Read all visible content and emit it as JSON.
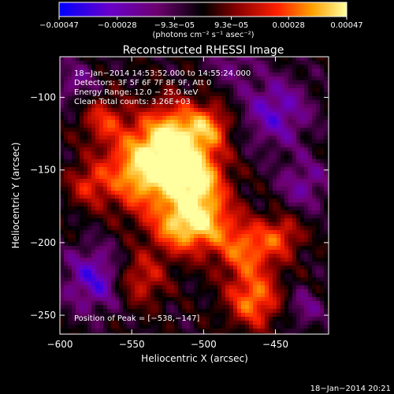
{
  "chart_data": {
    "type": "heatmap",
    "title": "Reconstructed RHESSI Image",
    "xlabel": "Heliocentric X (arcsec)",
    "ylabel": "Heliocentric Y (arcsec)",
    "xlim": [
      -600,
      -413
    ],
    "ylim": [
      -263,
      -72
    ],
    "x_ticks": [
      -600,
      -550,
      -500,
      -450
    ],
    "x_tick_labels": [
      "−600",
      "−550",
      "−500",
      "−450"
    ],
    "y_ticks": [
      -100,
      -150,
      -200,
      -250
    ],
    "y_tick_labels": [
      "−100",
      "−150",
      "−200",
      "−250"
    ],
    "colorbar": {
      "min": -0.00047,
      "max": 0.00047,
      "ticks": [
        -0.00047,
        -0.00028,
        -9.3e-05,
        9.3e-05,
        0.00028,
        0.00047
      ],
      "tick_labels": [
        "−0.00047",
        "−0.00028",
        "−9.3e−05",
        "9.3e−05",
        "0.00028",
        "0.00047"
      ],
      "unit_label": "(photons cm⁻² s⁻¹ asec⁻²)",
      "colors": [
        "#0000ff",
        "#6a00c8",
        "#6d0070",
        "#000000",
        "#8a0000",
        "#ff2000",
        "#ffa000",
        "#ffffa0"
      ]
    },
    "peak": [
      -538,
      -147
    ],
    "grid_on": false,
    "annotations": [
      "18−Jan−2014 14:53:52.000 to 14:55:24.000",
      "Detectors: 3F 5F 6F 7F 8F 9F, Att 0",
      "Energy Range: 12.0 − 25.0 keV",
      "Clean     Total counts: 3.26E+03",
      "Position of Peak = [−538,−147]"
    ]
  },
  "footer_timestamp": "18−Jan−2014 20:21"
}
